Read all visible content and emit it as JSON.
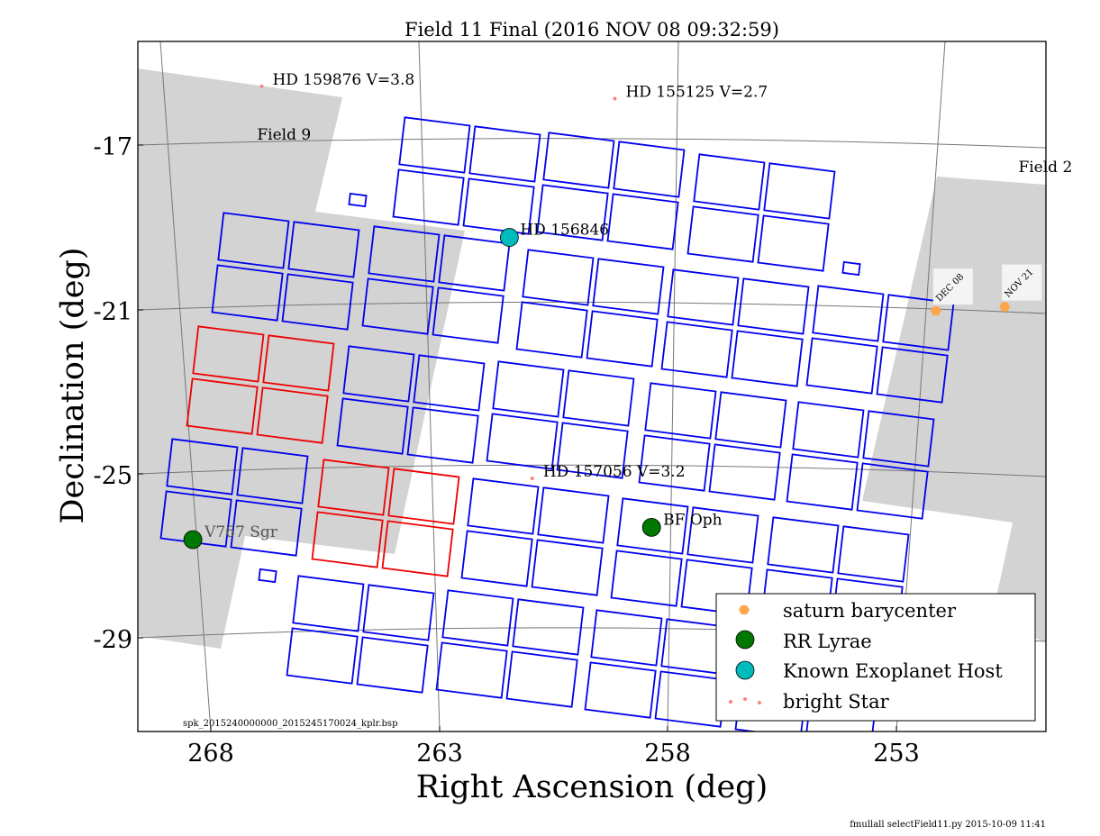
{
  "chart_data": {
    "type": "scatter",
    "title": "Field 11 Final (2016 NOV 08 09:32:59)",
    "xlabel": "Right Ascension (deg)",
    "ylabel": "Declination (deg)",
    "xlim": [
      269.6,
      249.8
    ],
    "ylim": [
      -31.3,
      -14.4
    ],
    "x_ticks": [
      "268",
      "263",
      "258",
      "253"
    ],
    "y_ticks": [
      "-17",
      "-21",
      "-25",
      "-29"
    ],
    "legend_position": "lower-right",
    "field_labels": [
      {
        "name": "Field 9",
        "ra": 267.0,
        "dec": -16.8
      },
      {
        "name": "Field 2",
        "ra": 250.4,
        "dec": -17.6
      }
    ],
    "bright_stars": [
      {
        "label": "HD 159876 V=3.8",
        "ra": 266.9,
        "dec": -15.5
      },
      {
        "label": "HD 155125 V=2.7",
        "ra": 259.2,
        "dec": -15.8
      },
      {
        "label": "HD 157056 V=3.2",
        "ra": 261.0,
        "dec": -25.1
      }
    ],
    "rr_lyrae": [
      {
        "label": "V767 Sgr",
        "ra": 268.4,
        "dec": -26.6
      },
      {
        "label": "BF Oph",
        "ra": 258.4,
        "dec": -26.3
      }
    ],
    "exoplanet_hosts": [
      {
        "label": "HD 156846",
        "ra": 261.5,
        "dec": -19.2
      }
    ],
    "saturn_barycenter": [
      {
        "label": "DEC 08",
        "ra": 252.2,
        "dec": -21.0
      },
      {
        "label": "NOV 21",
        "ra": 250.7,
        "dec": -20.9
      }
    ],
    "legend": [
      {
        "label": "saturn barycenter",
        "color": "#ffa64d",
        "marker": "hexagon"
      },
      {
        "label": "RR Lyrae",
        "color": "#007700",
        "marker": "circle"
      },
      {
        "label": "Known Exoplanet Host",
        "color": "#00bbbb",
        "marker": "circle"
      },
      {
        "label": "bright Star",
        "color": "#ff8080",
        "marker": "dots"
      }
    ],
    "colors": {
      "module": "#0000ee",
      "highlight_module": "#ee0000",
      "overlap_field": "#d3d3d3",
      "grid": "#777777"
    }
  },
  "annotations": {
    "spk_file": "spk_2015240000000_2015245170024_kplr.bsp",
    "footer": "fmullall selectField11.py 2015-10-09 11:41"
  }
}
